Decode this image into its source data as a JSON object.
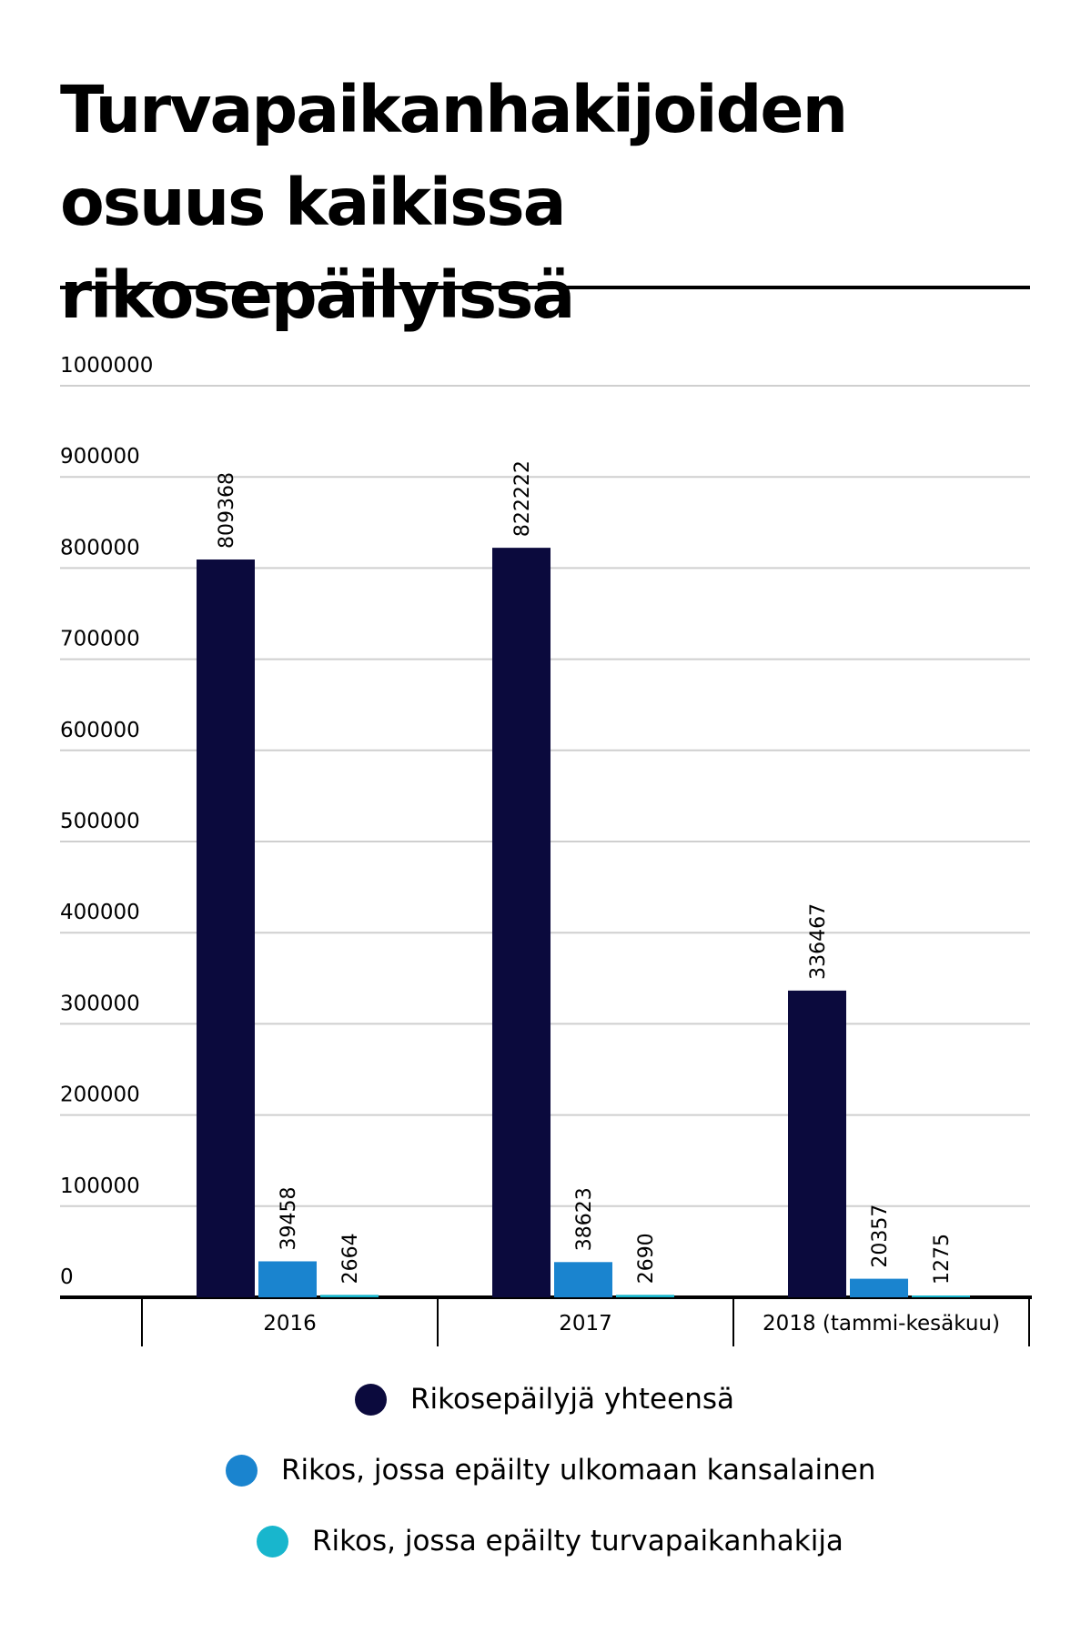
{
  "chart_data": {
    "type": "bar",
    "title": "Turvapaikanhakijoiden osuus kaikissa rikosepäilyissä",
    "xlabel": "",
    "ylabel": "",
    "ylim": [
      0,
      1000000
    ],
    "yticks": [
      "0",
      "100000",
      "200000",
      "300000",
      "400000",
      "500000",
      "600000",
      "700000",
      "800000",
      "900000",
      "1000000"
    ],
    "categories": [
      "2016",
      "2017",
      "2018 (tammi-kesäkuu)"
    ],
    "series": [
      {
        "name": "Rikosepäilyjä yhteensä",
        "values": [
          809368,
          822222,
          336467
        ],
        "color": "#0b0a3d"
      },
      {
        "name": "Rikos, jossa epäilty ulkomaan kansalainen",
        "values": [
          39458,
          38623,
          20357
        ],
        "color": "#1a84cf"
      },
      {
        "name": "Rikos, jossa epäilty turvapaikanhakija",
        "values": [
          2664,
          2690,
          1275
        ],
        "color": "#18b6cd"
      }
    ],
    "grid": true,
    "legend": "bottom"
  }
}
